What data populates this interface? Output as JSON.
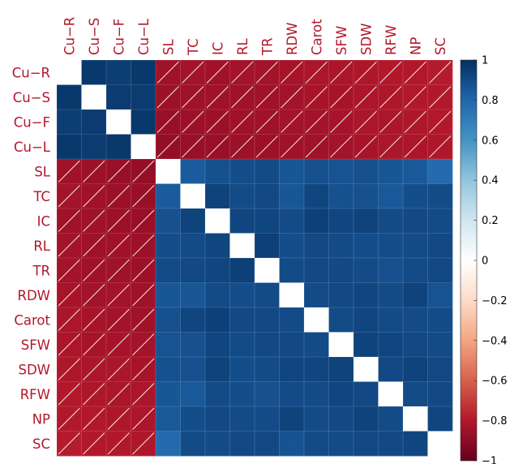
{
  "chart_data": {
    "type": "heatmap",
    "labels": [
      "Cu−R",
      "Cu−S",
      "Cu−F",
      "Cu−L",
      "SL",
      "TC",
      "IC",
      "RL",
      "TR",
      "RDW",
      "Carot",
      "SFW",
      "SDW",
      "RFW",
      "NP",
      "SC"
    ],
    "label_color": "#b2182b",
    "layout": "upper-row labels on left, labels rotated on top",
    "diagonal": "blank",
    "crossed_out": "negative correlations hatched with white diagonal lines",
    "colorbar": {
      "range": [
        -1,
        1
      ],
      "ticks": [
        "1",
        "0.8",
        "0.6",
        "0.4",
        "0.2",
        "0",
        "−0.2",
        "−0.4",
        "−0.6",
        "−0.8",
        "−1"
      ],
      "colors": [
        "#67001f",
        "#b2182b",
        "#d6604d",
        "#f4a582",
        "#fddbc7",
        "#ffffff",
        "#d1e5f0",
        "#92c5de",
        "#4393c3",
        "#2166ac",
        "#053061"
      ]
    },
    "matrix": [
      [
        null,
        0.97,
        0.95,
        0.97,
        -0.85,
        -0.84,
        -0.85,
        -0.84,
        -0.84,
        -0.83,
        -0.82,
        -0.82,
        -0.81,
        -0.8,
        -0.8,
        -0.79
      ],
      [
        0.97,
        null,
        0.96,
        0.96,
        -0.86,
        -0.85,
        -0.85,
        -0.85,
        -0.85,
        -0.84,
        -0.83,
        -0.83,
        -0.82,
        -0.81,
        -0.8,
        -0.8
      ],
      [
        0.95,
        0.96,
        null,
        0.97,
        -0.87,
        -0.86,
        -0.86,
        -0.85,
        -0.85,
        -0.84,
        -0.84,
        -0.83,
        -0.82,
        -0.82,
        -0.81,
        -0.8
      ],
      [
        0.97,
        0.96,
        0.97,
        null,
        -0.88,
        -0.87,
        -0.87,
        -0.86,
        -0.86,
        -0.85,
        -0.85,
        -0.84,
        -0.83,
        -0.82,
        -0.82,
        -0.81
      ],
      [
        -0.85,
        -0.86,
        -0.87,
        -0.88,
        null,
        0.84,
        0.88,
        0.89,
        0.9,
        0.86,
        0.88,
        0.87,
        0.88,
        0.86,
        0.85,
        0.78
      ],
      [
        -0.84,
        -0.85,
        -0.86,
        -0.87,
        0.84,
        null,
        0.93,
        0.9,
        0.91,
        0.86,
        0.92,
        0.88,
        0.88,
        0.85,
        0.89,
        0.9
      ],
      [
        -0.85,
        -0.85,
        -0.86,
        -0.87,
        0.88,
        0.93,
        null,
        0.92,
        0.92,
        0.9,
        0.94,
        0.92,
        0.93,
        0.9,
        0.91,
        0.9
      ],
      [
        -0.84,
        -0.85,
        -0.85,
        -0.86,
        0.89,
        0.9,
        0.92,
        null,
        0.94,
        0.89,
        0.91,
        0.9,
        0.89,
        0.89,
        0.9,
        0.91
      ],
      [
        -0.84,
        -0.85,
        -0.85,
        -0.86,
        0.9,
        0.91,
        0.92,
        0.94,
        null,
        0.9,
        0.91,
        0.91,
        0.9,
        0.88,
        0.9,
        0.91
      ],
      [
        -0.83,
        -0.84,
        -0.84,
        -0.85,
        0.86,
        0.86,
        0.9,
        0.89,
        0.9,
        null,
        0.9,
        0.91,
        0.92,
        0.9,
        0.93,
        0.87
      ],
      [
        -0.82,
        -0.83,
        -0.84,
        -0.85,
        0.88,
        0.92,
        0.94,
        0.91,
        0.91,
        0.9,
        null,
        0.9,
        0.92,
        0.9,
        0.9,
        0.9
      ],
      [
        -0.82,
        -0.83,
        -0.83,
        -0.84,
        0.87,
        0.88,
        0.92,
        0.9,
        0.91,
        0.91,
        0.9,
        null,
        0.93,
        0.92,
        0.91,
        0.9
      ],
      [
        -0.81,
        -0.82,
        -0.82,
        -0.83,
        0.88,
        0.88,
        0.93,
        0.89,
        0.9,
        0.92,
        0.92,
        0.93,
        null,
        0.91,
        0.93,
        0.91
      ],
      [
        -0.8,
        -0.81,
        -0.82,
        -0.82,
        0.86,
        0.85,
        0.9,
        0.89,
        0.88,
        0.9,
        0.9,
        0.92,
        0.91,
        null,
        0.9,
        0.91
      ],
      [
        -0.8,
        -0.8,
        -0.81,
        -0.82,
        0.85,
        0.89,
        0.91,
        0.9,
        0.9,
        0.93,
        0.9,
        0.91,
        0.93,
        0.9,
        null,
        0.92
      ],
      [
        -0.79,
        -0.8,
        -0.8,
        -0.81,
        0.78,
        0.9,
        0.9,
        0.91,
        0.91,
        0.87,
        0.9,
        0.9,
        0.91,
        0.91,
        0.92,
        null
      ]
    ]
  }
}
